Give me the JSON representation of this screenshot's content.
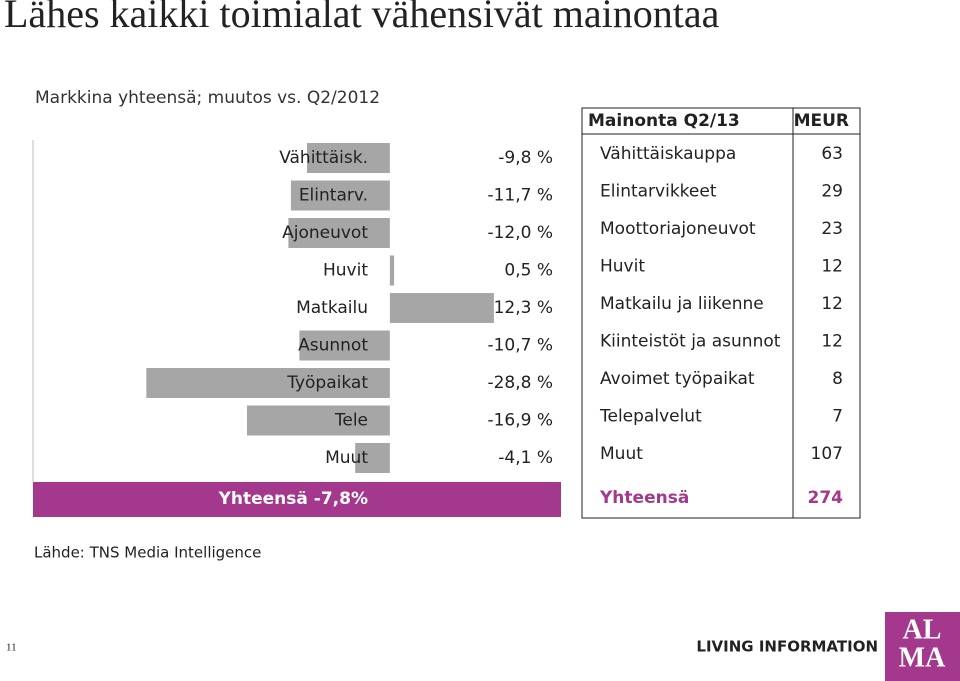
{
  "title": "Lähes kaikki toimialat vähensivät mainontaa",
  "chart_data": {
    "type": "bar",
    "orientation": "horizontal",
    "subtitle": "Markkina yhteensä; muutos vs. Q2/2012",
    "categories": [
      "Vähittäisk.",
      "Elintarv.",
      "Ajoneuvot",
      "Huvit",
      "Matkailu",
      "Asunnot",
      "Työpaikat",
      "Tele",
      "Muut"
    ],
    "values": [
      -9.8,
      -11.7,
      -12.0,
      0.5,
      12.3,
      -10.7,
      -28.8,
      -16.9,
      -4.1
    ],
    "value_labels": [
      "-9,8 %",
      "-11,7 %",
      "-12,0 %",
      "0,5 %",
      "12,3 %",
      "-10,7 %",
      "-28,8 %",
      "-16,9 %",
      "-4,1 %"
    ],
    "color": "#a6a6a6",
    "xlim": [
      -42.2,
      20
    ],
    "total_label": "Yhteensä -7,8%",
    "total_color": "#a3388c"
  },
  "table": {
    "header": [
      "Mainonta Q2/13",
      "MEUR"
    ],
    "rows": [
      [
        "Vähittäiskauppa",
        63
      ],
      [
        "Elintarvikkeet",
        29
      ],
      [
        "Moottoriajoneuvot",
        23
      ],
      [
        "Huvit",
        12
      ],
      [
        "Matkailu ja liikenne",
        12
      ],
      [
        "Kiinteistöt ja asunnot",
        12
      ],
      [
        "Avoimet työpaikat",
        8
      ],
      [
        "Telepalvelut",
        7
      ],
      [
        "Muut",
        107
      ]
    ],
    "total": [
      "Yhteensä",
      274
    ]
  },
  "source": "Lähde: TNS Media Intelligence",
  "page_number": "11",
  "tagline": "LIVING INFORMATION",
  "logo": [
    "AL",
    "MA"
  ]
}
